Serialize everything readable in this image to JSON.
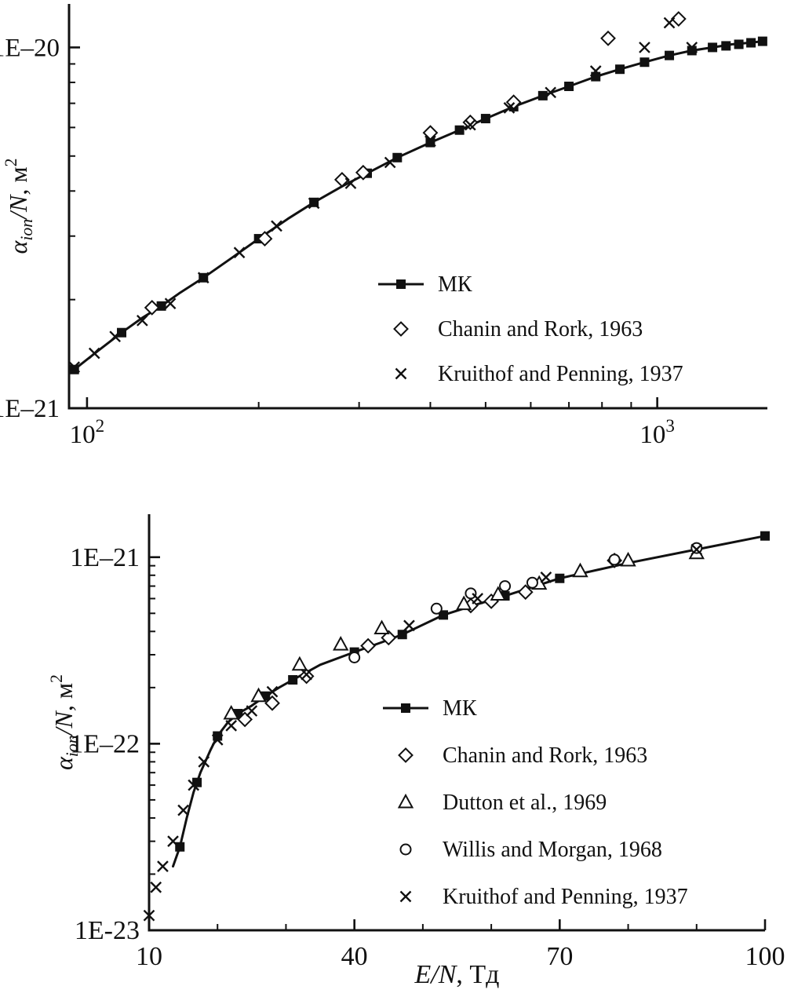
{
  "figure": {
    "background": "#ffffff",
    "ink": "#111111"
  },
  "chart_data": [
    {
      "name": "upper-panel",
      "type": "line",
      "title": "",
      "x_scale": "log",
      "y_scale": "log",
      "xlim": [
        93,
        1560
      ],
      "ylim": [
        1e-21,
        1.32e-20
      ],
      "grid": false,
      "legend_position": "inside-lower-right",
      "xlabel_rich": [],
      "ylabel_rich": [
        {
          "text": "α",
          "italic": true
        },
        {
          "text": "ion",
          "italic": true,
          "sub": true
        },
        {
          "text": "/N",
          "italic": true
        },
        {
          "text": ", м",
          "italic": false
        },
        {
          "text": "2",
          "sup": true,
          "italic": false
        }
      ],
      "x_ticks": [
        {
          "value": 100,
          "base": "10",
          "exp": "2"
        },
        {
          "value": 1000,
          "base": "10",
          "exp": "3"
        }
      ],
      "x_minor": [],
      "y_ticks": [
        {
          "value": 1e-21,
          "label": "1E–21"
        },
        {
          "value": 1e-20,
          "label": "1E–20"
        }
      ],
      "series": [
        {
          "name": "МК",
          "marker": "filled-square",
          "line": true,
          "points": [
            [
              95,
              1.28e-21
            ],
            [
              105,
              1.45e-21
            ],
            [
              115,
              1.62e-21
            ],
            [
              125,
              1.78e-21
            ],
            [
              135,
              1.92e-21
            ],
            [
              145,
              2.08e-21
            ],
            [
              160,
              2.3e-21
            ],
            [
              180,
              2.62e-21
            ],
            [
              200,
              2.95e-21
            ],
            [
              225,
              3.35e-21
            ],
            [
              250,
              3.72e-21
            ],
            [
              280,
              4.12e-21
            ],
            [
              310,
              4.48e-21
            ],
            [
              350,
              4.95e-21
            ],
            [
              400,
              5.45e-21
            ],
            [
              450,
              5.9e-21
            ],
            [
              500,
              6.35e-21
            ],
            [
              560,
              6.85e-21
            ],
            [
              630,
              7.35e-21
            ],
            [
              700,
              7.8e-21
            ],
            [
              780,
              8.3e-21
            ],
            [
              860,
              8.7e-21
            ],
            [
              950,
              9.1e-21
            ],
            [
              1050,
              9.5e-21
            ],
            [
              1150,
              9.8e-21
            ],
            [
              1250,
              1e-20
            ],
            [
              1350,
              1.02e-20
            ],
            [
              1450,
              1.03e-20
            ],
            [
              1530,
              1.04e-20
            ]
          ],
          "marker_points": [
            [
              95,
              1.28e-21
            ],
            [
              115,
              1.62e-21
            ],
            [
              135,
              1.92e-21
            ],
            [
              160,
              2.3e-21
            ],
            [
              200,
              2.95e-21
            ],
            [
              250,
              3.72e-21
            ],
            [
              310,
              4.48e-21
            ],
            [
              350,
              4.95e-21
            ],
            [
              400,
              5.45e-21
            ],
            [
              450,
              5.9e-21
            ],
            [
              500,
              6.35e-21
            ],
            [
              560,
              6.85e-21
            ],
            [
              630,
              7.35e-21
            ],
            [
              700,
              7.8e-21
            ],
            [
              780,
              8.3e-21
            ],
            [
              860,
              8.7e-21
            ],
            [
              950,
              9.1e-21
            ],
            [
              1050,
              9.5e-21
            ],
            [
              1150,
              9.8e-21
            ],
            [
              1250,
              1e-20
            ],
            [
              1320,
              1.01e-20
            ],
            [
              1390,
              1.02e-20
            ],
            [
              1460,
              1.03e-20
            ],
            [
              1530,
              1.04e-20
            ]
          ]
        },
        {
          "name": "Chanin and Rork, 1963",
          "marker": "open-diamond",
          "line": false,
          "points": [
            [
              130,
              1.9e-21
            ],
            [
              205,
              2.95e-21
            ],
            [
              280,
              4.3e-21
            ],
            [
              305,
              4.5e-21
            ],
            [
              400,
              5.8e-21
            ],
            [
              470,
              6.2e-21
            ],
            [
              560,
              7.05e-21
            ],
            [
              820,
              1.06e-20
            ],
            [
              1090,
              1.2e-20
            ]
          ]
        },
        {
          "name": "Kruithof and Penning, 1937",
          "marker": "x-cross",
          "line": false,
          "points": [
            [
              95,
              1.3e-21
            ],
            [
              103,
              1.42e-21
            ],
            [
              112,
              1.58e-21
            ],
            [
              125,
              1.75e-21
            ],
            [
              140,
              1.95e-21
            ],
            [
              160,
              2.3e-21
            ],
            [
              185,
              2.7e-21
            ],
            [
              215,
              3.2e-21
            ],
            [
              250,
              3.7e-21
            ],
            [
              290,
              4.2e-21
            ],
            [
              340,
              4.8e-21
            ],
            [
              400,
              5.5e-21
            ],
            [
              470,
              6.1e-21
            ],
            [
              550,
              6.8e-21
            ],
            [
              650,
              7.5e-21
            ],
            [
              780,
              8.6e-21
            ],
            [
              950,
              1e-20
            ],
            [
              1050,
              1.17e-20
            ],
            [
              1150,
              1e-20
            ]
          ]
        }
      ]
    },
    {
      "name": "lower-panel",
      "type": "line",
      "title": "",
      "x_scale": "linear",
      "y_scale": "log",
      "xlim": [
        10,
        100
      ],
      "ylim": [
        1e-23,
        1.7e-21
      ],
      "grid": false,
      "legend_position": "inside-lower-right",
      "xlabel_rich": [
        {
          "text": "E/N",
          "italic": true
        },
        {
          "text": ", Тд",
          "italic": false
        }
      ],
      "ylabel_rich": [
        {
          "text": "α",
          "italic": true
        },
        {
          "text": "ion",
          "italic": true,
          "sub": true
        },
        {
          "text": "/N",
          "italic": true
        },
        {
          "text": ", м",
          "italic": false
        },
        {
          "text": "2",
          "sup": true,
          "italic": false
        }
      ],
      "x_ticks": [
        {
          "value": 10,
          "label": "10"
        },
        {
          "value": 40,
          "label": "40"
        },
        {
          "value": 70,
          "label": "70"
        },
        {
          "value": 100,
          "label": "100"
        }
      ],
      "x_minor": [
        20,
        30,
        50,
        60,
        80,
        90
      ],
      "y_ticks": [
        {
          "value": 1e-21,
          "label": "1E–21"
        },
        {
          "value": 1e-22,
          "label": "1E–22"
        },
        {
          "value": 1e-23,
          "label": "1E-23"
        }
      ],
      "series": [
        {
          "name": "МК",
          "marker": "filled-square",
          "line": true,
          "points": [
            [
              13.5,
              2.2e-23
            ],
            [
              14.5,
              2.8e-23
            ],
            [
              15.5,
              4e-23
            ],
            [
              16.5,
              5.5e-23
            ],
            [
              17.5,
              7e-23
            ],
            [
              19,
              9.3e-23
            ],
            [
              20,
              1.1e-22
            ],
            [
              21.5,
              1.3e-22
            ],
            [
              23,
              1.45e-22
            ],
            [
              25,
              1.6e-22
            ],
            [
              27,
              1.8e-22
            ],
            [
              29,
              2e-22
            ],
            [
              31,
              2.2e-22
            ],
            [
              35,
              2.65e-22
            ],
            [
              40,
              3.1e-22
            ],
            [
              44,
              3.5e-22
            ],
            [
              47,
              3.85e-22
            ],
            [
              53,
              4.9e-22
            ],
            [
              58,
              5.6e-22
            ],
            [
              62,
              6.2e-22
            ],
            [
              70,
              7.7e-22
            ],
            [
              80,
              9.3e-22
            ],
            [
              90,
              1.1e-21
            ],
            [
              100,
              1.3e-21
            ]
          ],
          "marker_points": [
            [
              14.5,
              2.8e-23
            ],
            [
              17,
              6.2e-23
            ],
            [
              20,
              1.1e-22
            ],
            [
              23,
              1.45e-22
            ],
            [
              27,
              1.8e-22
            ],
            [
              31,
              2.2e-22
            ],
            [
              40,
              3.1e-22
            ],
            [
              47,
              3.85e-22
            ],
            [
              53,
              4.9e-22
            ],
            [
              62,
              6.2e-22
            ],
            [
              70,
              7.7e-22
            ],
            [
              100,
              1.3e-21
            ]
          ]
        },
        {
          "name": "Chanin and Rork, 1963",
          "marker": "open-diamond",
          "line": false,
          "points": [
            [
              24,
              1.35e-22
            ],
            [
              28,
              1.65e-22
            ],
            [
              33,
              2.3e-22
            ],
            [
              42,
              3.35e-22
            ],
            [
              45,
              3.7e-22
            ],
            [
              57,
              5.5e-22
            ],
            [
              60,
              5.8e-22
            ],
            [
              65,
              6.5e-22
            ],
            [
              78,
              9.6e-22
            ]
          ]
        },
        {
          "name": "Dutton et al., 1969",
          "marker": "open-triangle",
          "line": false,
          "points": [
            [
              22,
              1.45e-22
            ],
            [
              26,
              1.8e-22
            ],
            [
              32,
              2.65e-22
            ],
            [
              38,
              3.4e-22
            ],
            [
              44,
              4.15e-22
            ],
            [
              56,
              5.6e-22
            ],
            [
              61,
              6.3e-22
            ],
            [
              67,
              7.2e-22
            ],
            [
              73,
              8.4e-22
            ],
            [
              80,
              9.6e-22
            ],
            [
              90,
              1.05e-21
            ]
          ]
        },
        {
          "name": "Willis and Morgan, 1968",
          "marker": "open-circle",
          "line": false,
          "points": [
            [
              40,
              2.9e-22
            ],
            [
              52,
              5.3e-22
            ],
            [
              57,
              6.4e-22
            ],
            [
              62,
              7e-22
            ],
            [
              66,
              7.3e-22
            ],
            [
              78,
              9.7e-22
            ],
            [
              90,
              1.12e-21
            ]
          ]
        },
        {
          "name": "Kruithof and Penning, 1937",
          "marker": "x-cross",
          "line": false,
          "points": [
            [
              10,
              1.2e-23
            ],
            [
              11,
              1.7e-23
            ],
            [
              12,
              2.2e-23
            ],
            [
              13.5,
              3e-23
            ],
            [
              15,
              4.4e-23
            ],
            [
              16.5,
              6e-23
            ],
            [
              18,
              8e-23
            ],
            [
              20,
              1.05e-22
            ],
            [
              22,
              1.25e-22
            ],
            [
              25,
              1.5e-22
            ],
            [
              28,
              1.9e-22
            ],
            [
              33,
              2.35e-22
            ],
            [
              48,
              4.3e-22
            ],
            [
              58,
              6e-22
            ],
            [
              68,
              7.8e-22
            ],
            [
              90,
              1.1e-21
            ]
          ]
        }
      ]
    }
  ]
}
